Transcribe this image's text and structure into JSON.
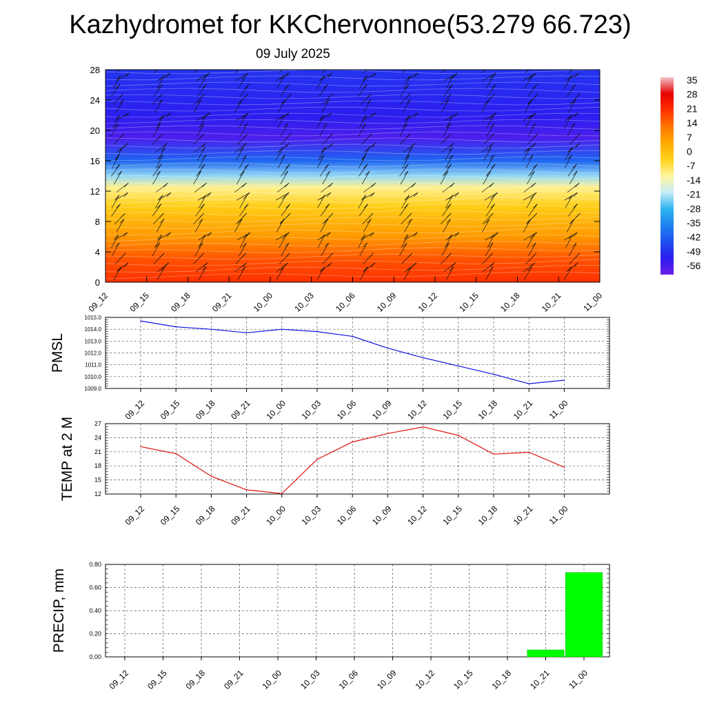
{
  "header": {
    "title": "Kazhydromet for KKChervonnoe(53.279 66.723)",
    "date": "09 July 2025"
  },
  "colors": {
    "pressure_line": "#1010e0",
    "temp_line": "#e01010",
    "precip_bar": "#00ff00"
  },
  "chart_data": [
    {
      "type": "heatmap",
      "title": "",
      "x": [
        "09_12",
        "09_15",
        "09_18",
        "09_21",
        "10_00",
        "10_03",
        "10_06",
        "10_09",
        "10_12",
        "10_15",
        "10_18",
        "10_21",
        "11_00"
      ],
      "y_ticks": [
        0,
        4,
        8,
        12,
        16,
        20,
        24,
        28
      ],
      "ylim": [
        0,
        28
      ],
      "colorbar_labels": [
        35,
        28,
        21,
        14,
        7,
        0,
        -7,
        -14,
        -21,
        -28,
        -35,
        -42,
        -49,
        -56
      ],
      "colormap": [
        "#f2c2c8",
        "#e60000",
        "#ff3300",
        "#ff7700",
        "#ffaa00",
        "#ffd21a",
        "#fff5a0",
        "#c8ecf8",
        "#2fb4f0",
        "#1e82f0",
        "#1e50f0",
        "#2a1ef0",
        "#6a20e8"
      ],
      "profile_note_levels": [
        0,
        3,
        6,
        10,
        12.5,
        14,
        16,
        19,
        22,
        28
      ],
      "profile_values": [
        22,
        18,
        8,
        -2,
        -10,
        -22,
        -40,
        -56,
        -52,
        -48
      ],
      "wind_barbs": "present"
    },
    {
      "type": "line",
      "ylabel": "PMSL",
      "x": [
        "09_12",
        "09_15",
        "09_18",
        "09_21",
        "10_00",
        "10_03",
        "10_06",
        "10_09",
        "10_12",
        "10_15",
        "10_18",
        "10_21",
        "11_00"
      ],
      "series": [
        {
          "values": [
            1014.7,
            1014.2,
            1014.0,
            1013.7,
            1014.0,
            1013.8,
            1013.4,
            1012.4,
            1011.6,
            1010.9,
            1010.2,
            1009.4,
            1009.7
          ]
        }
      ],
      "ylim": [
        1009.0,
        1015.0
      ],
      "y_ticks": [
        "1009.0",
        "1010.0",
        "1011.0",
        "1012.0",
        "1013.0",
        "1014.0",
        "1015.0"
      ],
      "grid": true
    },
    {
      "type": "line",
      "ylabel": "TEMP at 2 M",
      "x": [
        "09_12",
        "09_15",
        "09_18",
        "09_21",
        "10_00",
        "10_03",
        "10_06",
        "10_09",
        "10_12",
        "10_15",
        "10_18",
        "10_21",
        "11_00"
      ],
      "series": [
        {
          "values": [
            22.1,
            20.6,
            15.8,
            12.9,
            12.1,
            19.4,
            23.1,
            24.9,
            26.3,
            24.5,
            20.5,
            20.9,
            17.7
          ]
        }
      ],
      "ylim": [
        12,
        27
      ],
      "y_ticks": [
        "12",
        "15",
        "18",
        "21",
        "24",
        "27"
      ],
      "grid": true
    },
    {
      "type": "bar",
      "ylabel": "PRECIP, mm",
      "x": [
        "09_12",
        "09_15",
        "09_18",
        "09_21",
        "10_00",
        "10_03",
        "10_06",
        "10_09",
        "10_12",
        "10_15",
        "10_18",
        "10_21",
        "11_00"
      ],
      "values": [
        0,
        0,
        0,
        0,
        0,
        0,
        0,
        0,
        0,
        0,
        0,
        0.06,
        0.73
      ],
      "ylim": [
        0,
        0.8
      ],
      "y_ticks": [
        "0.00",
        "0.20",
        "0.40",
        "0.60",
        "0.80"
      ],
      "grid": true
    }
  ]
}
